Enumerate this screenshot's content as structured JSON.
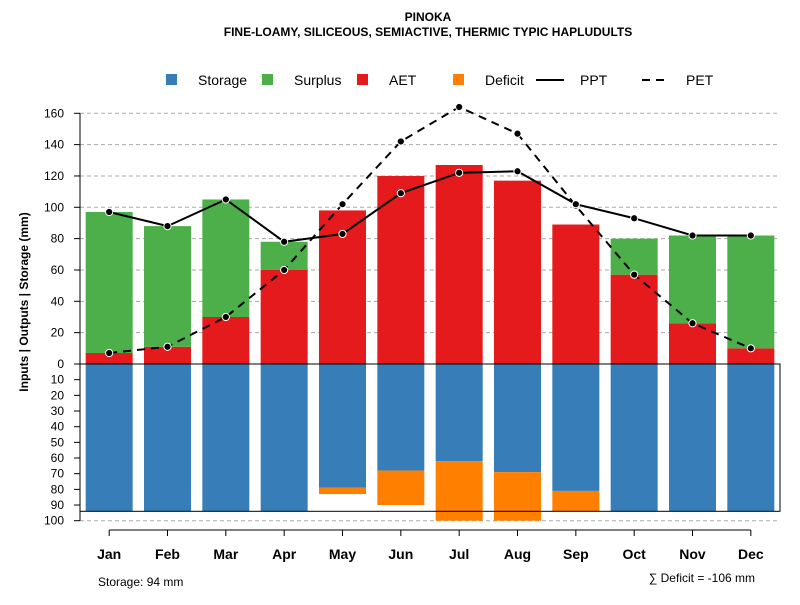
{
  "chart_data": {
    "type": "bar",
    "title": "PINOKA",
    "subtitle": "FINE-LOAMY, SILICEOUS, SEMIACTIVE, THERMIC TYPIC HAPLUDULTS",
    "ylabel": "Inputs | Outputs | Storage    (mm)",
    "categories": [
      "Jan",
      "Feb",
      "Mar",
      "Apr",
      "May",
      "Jun",
      "Jul",
      "Aug",
      "Sep",
      "Oct",
      "Nov",
      "Dec"
    ],
    "upper_ylim": [
      0,
      170
    ],
    "upper_ticks": [
      0,
      20,
      40,
      60,
      80,
      100,
      120,
      140,
      160
    ],
    "lower_ylim": [
      0,
      100
    ],
    "lower_ticks": [
      0,
      10,
      20,
      30,
      40,
      50,
      60,
      70,
      80,
      90,
      100
    ],
    "legend": [
      {
        "label": "Storage",
        "kind": "box",
        "color": "#377eb8"
      },
      {
        "label": "Surplus",
        "kind": "box",
        "color": "#4daf4a"
      },
      {
        "label": "AET",
        "kind": "box",
        "color": "#e41a1c"
      },
      {
        "label": "Deficit",
        "kind": "box",
        "color": "#ff7f00"
      },
      {
        "label": "PPT",
        "kind": "solid"
      },
      {
        "label": "PET",
        "kind": "dashed"
      }
    ],
    "series": [
      {
        "name": "AET",
        "color": "#e41a1c",
        "values": [
          7,
          11,
          30,
          60,
          98,
          120,
          127,
          117,
          89,
          57,
          26,
          10
        ]
      },
      {
        "name": "Surplus",
        "color": "#4daf4a",
        "values": [
          90,
          77,
          75,
          18,
          0,
          0,
          0,
          0,
          0,
          23,
          56,
          72
        ]
      },
      {
        "name": "Storage",
        "color": "#377eb8",
        "values": [
          94,
          94,
          94,
          94,
          79,
          68,
          62,
          69,
          81,
          94,
          94,
          94
        ]
      },
      {
        "name": "Deficit",
        "color": "#ff7f00",
        "values": [
          0,
          0,
          0,
          0,
          4,
          22,
          38,
          31,
          13,
          0,
          0,
          0
        ]
      },
      {
        "name": "PPT",
        "values": [
          97,
          88,
          105,
          78,
          83,
          109,
          122,
          123,
          102,
          93,
          82,
          82
        ]
      },
      {
        "name": "PET",
        "values": [
          7,
          11,
          30,
          60,
          102,
          142,
          164,
          147,
          101,
          57,
          26,
          10
        ]
      }
    ],
    "storage_capacity": 94,
    "storage_note": "Storage: 94 mm",
    "deficit_note": "∑ Deficit = -106 mm",
    "grid": true
  }
}
